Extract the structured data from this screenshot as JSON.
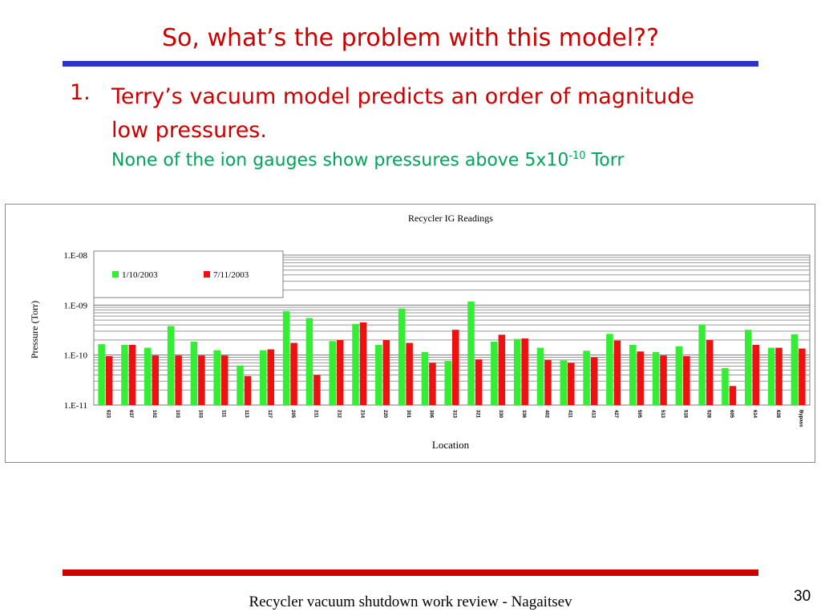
{
  "slide": {
    "title": "So, what’s the problem with this model??",
    "bullet_number": "1.",
    "bullet_text": "Terry’s vacuum model predicts an order of magnitude low pressures.",
    "sub_prefix": "None of the ion gauges show pressures above 5x10",
    "sub_exponent": "-10",
    "sub_suffix": " Torr",
    "footer": "Recycler vacuum shutdown work review - Nagaitsev",
    "page_number": "30"
  },
  "colors": {
    "title": "#cc0000",
    "sub": "#00a45a",
    "series_1": "#33ee33",
    "series_2": "#ee1111",
    "rule_top": "#2a33cc",
    "rule_bottom": "#cc0000"
  },
  "chart_data": {
    "type": "bar",
    "title": "Recycler IG Readings",
    "xlabel": "Location",
    "ylabel": "Pressure (Torr)",
    "yscale": "log",
    "ylim": [
      1e-11,
      1e-08
    ],
    "ytick_labels": [
      "1.E-08",
      "1.E-09",
      "1.E-10",
      "1.E-11"
    ],
    "grid": true,
    "legend_position": "top-left",
    "categories": [
      "623",
      "637",
      "102",
      "103",
      "103",
      "111",
      "113",
      "127",
      "205",
      "211",
      "212",
      "214",
      "220",
      "301",
      "306",
      "313",
      "321",
      "330",
      "336",
      "402",
      "411",
      "413",
      "427",
      "505",
      "513",
      "518",
      "528",
      "605",
      "614",
      "628",
      "Bypass"
    ],
    "series": [
      {
        "name": "1/10/2003",
        "values": [
          1.65e-10,
          1.6e-10,
          1.4e-10,
          3.8e-10,
          1.85e-10,
          1.25e-10,
          6.2e-11,
          1.25e-10,
          7.5e-10,
          5.5e-10,
          1.9e-10,
          4.2e-10,
          1.6e-10,
          8.5e-10,
          1.15e-10,
          7.6e-11,
          1.18e-09,
          1.85e-10,
          2.1e-10,
          1.4e-10,
          7.8e-11,
          1.22e-10,
          2.65e-10,
          1.6e-10,
          1.15e-10,
          1.5e-10,
          4.1e-10,
          5.5e-11,
          3.2e-10,
          1.4e-10,
          2.6e-10
        ]
      },
      {
        "name": "7/11/2003",
        "values": [
          9.5e-11,
          1.6e-10,
          9.8e-11,
          9.8e-11,
          9.8e-11,
          9.8e-11,
          3.8e-11,
          1.3e-10,
          1.75e-10,
          4e-11,
          2e-10,
          4.5e-10,
          2e-10,
          1.75e-10,
          7e-11,
          3.2e-10,
          8.2e-11,
          2.55e-10,
          2.15e-10,
          8e-11,
          7e-11,
          9e-11,
          1.95e-10,
          1.18e-10,
          9.8e-11,
          9.5e-11,
          2e-10,
          2.4e-11,
          1.6e-10,
          1.4e-10,
          1.35e-10
        ]
      }
    ]
  }
}
